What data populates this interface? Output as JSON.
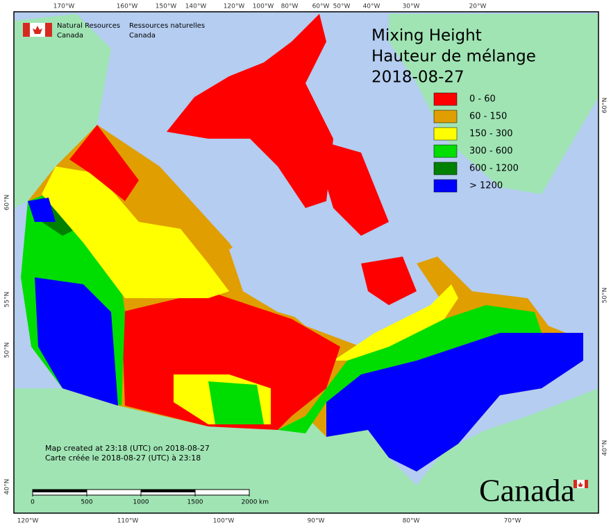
{
  "header": {
    "english": [
      "Natural Resources",
      "Canada"
    ],
    "french": [
      "Ressources naturelles",
      "Canada"
    ]
  },
  "title": [
    "Mixing Height",
    "Hauteur de mélange",
    "2018-08-27"
  ],
  "legend": [
    {
      "label": "0 - 60",
      "color": "#ff0000"
    },
    {
      "label": "60 - 150",
      "color": "#e09e00"
    },
    {
      "label": "150 - 300",
      "color": "#ffff00"
    },
    {
      "label": "300 - 600",
      "color": "#00dd00"
    },
    {
      "label": "600 - 1200",
      "color": "#008000"
    },
    {
      "label": "> 1200",
      "color": "#0000ff"
    }
  ],
  "graticule": {
    "top": [
      "170°W",
      "160°W",
      "150°W",
      "140°W",
      "120°W",
      "100°W",
      "80°W",
      "60°W",
      "50°W",
      "40°W",
      "30°W",
      "20°W"
    ],
    "bottom": [
      "120°W",
      "110°W",
      "100°W",
      "90°W",
      "80°W",
      "70°W"
    ],
    "left": [
      "60°N",
      "55°N",
      "50°N",
      "40°N"
    ],
    "right": [
      "60°N",
      "50°N",
      "40°N"
    ]
  },
  "scale": {
    "ticks": [
      0,
      500,
      1000,
      1500,
      2000
    ],
    "unit": "km"
  },
  "footnote": [
    "Map created at 23:18 (UTC) on 2018-08-27",
    "Carte créée le 2018-08-27 (UTC) à 23:18"
  ],
  "wordmark": "Canada"
}
